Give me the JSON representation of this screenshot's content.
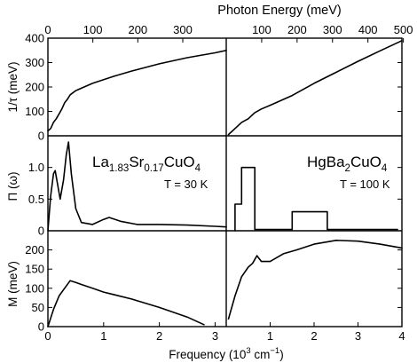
{
  "figure": {
    "top_axis_label": "Photon Energy (meV)",
    "bottom_axis_label": "Frequency (10³ cm⁻¹)",
    "bottom_axis_label_base": "Frequency (10",
    "bottom_axis_label_exp1": "3",
    "bottom_axis_label_mid": " cm",
    "bottom_axis_label_exp2": "−1",
    "bottom_axis_label_end": ")"
  },
  "panels": {
    "lsco_label_parts": [
      "La",
      "1.83",
      "Sr",
      "0.17",
      "CuO",
      "4"
    ],
    "lsco_label": "La1.83Sr0.17CuO4",
    "lsco_temp": "T = 30 K",
    "hbco_label_parts": [
      "HgBa",
      "2",
      "CuO",
      "4"
    ],
    "hbco_label": "HgBa2CuO4",
    "hbco_temp": "T = 100 K"
  },
  "chart_data": [
    {
      "type": "line",
      "panel": "LSCO scattering rate",
      "ylabel": "1/τ (meV)",
      "xlabel": "",
      "top_xlabel": "Photon Energy (meV)",
      "xlim": [
        0,
        3.2
      ],
      "ylim": [
        0,
        400
      ],
      "yticks": [
        0,
        100,
        200,
        300,
        400
      ],
      "top_ticks_meV": [
        0,
        100,
        200,
        300
      ],
      "grid": false,
      "x": [
        0,
        0.05,
        0.1,
        0.15,
        0.2,
        0.25,
        0.3,
        0.35,
        0.4,
        0.5,
        0.6,
        0.8,
        1.0,
        1.2,
        1.5,
        2.0,
        2.5,
        3.0,
        3.2
      ],
      "y": [
        20,
        30,
        55,
        70,
        90,
        110,
        135,
        150,
        168,
        185,
        195,
        215,
        230,
        245,
        265,
        295,
        320,
        340,
        350
      ]
    },
    {
      "type": "line",
      "panel": "HBCO scattering rate",
      "xlim": [
        0,
        4
      ],
      "ylim": [
        0,
        400
      ],
      "top_ticks_meV": [
        100,
        200,
        300,
        400,
        500
      ],
      "grid": false,
      "x": [
        0.05,
        0.2,
        0.35,
        0.5,
        0.65,
        0.8,
        1.0,
        1.5,
        2.0,
        2.5,
        3.0,
        3.5,
        4.0
      ],
      "y": [
        5,
        30,
        55,
        70,
        95,
        110,
        125,
        165,
        215,
        260,
        305,
        348,
        390
      ]
    },
    {
      "type": "line",
      "panel": "LSCO boson spectral function",
      "ylabel": "Π (ω)",
      "xlim": [
        0,
        3.2
      ],
      "ylim": [
        0,
        1.5
      ],
      "yticks": [
        0,
        0.5,
        1.0
      ],
      "ytick_labels": [
        "0",
        "0.5",
        "1.0"
      ],
      "grid": false,
      "x": [
        0,
        0.05,
        0.1,
        0.13,
        0.17,
        0.22,
        0.28,
        0.33,
        0.37,
        0.42,
        0.5,
        0.6,
        0.8,
        1.0,
        1.1,
        1.3,
        1.6,
        2.0,
        2.5,
        3.0,
        3.2
      ],
      "y": [
        0,
        0.55,
        0.9,
        0.95,
        0.75,
        0.5,
        0.8,
        1.2,
        1.4,
        0.9,
        0.35,
        0.13,
        0.1,
        0.18,
        0.21,
        0.15,
        0.1,
        0.1,
        0.09,
        0.07,
        0.06
      ]
    },
    {
      "type": "line",
      "panel": "HBCO boson spectral function (histogram)",
      "xlim": [
        0,
        4
      ],
      "ylim": [
        0,
        1.5
      ],
      "grid": false,
      "x": [
        0.2,
        0.2,
        0.35,
        0.35,
        0.65,
        0.65,
        1.5,
        1.5,
        2.3,
        2.3,
        3.9
      ],
      "y": [
        0,
        0.42,
        0.42,
        1.0,
        1.0,
        0.02,
        0.02,
        0.3,
        0.3,
        0.02,
        0.02
      ]
    },
    {
      "type": "line",
      "panel": "LSCO effective mass",
      "ylabel": "M (meV)",
      "xlim": [
        0,
        3.2
      ],
      "ylim": [
        0,
        250
      ],
      "yticks": [
        0,
        50,
        100,
        150,
        200
      ],
      "xticks": [
        0,
        1,
        2,
        3
      ],
      "grid": false,
      "x": [
        0,
        0.1,
        0.2,
        0.3,
        0.4,
        0.5,
        0.6,
        0.8,
        1.0,
        1.5,
        2.0,
        2.5,
        2.8
      ],
      "y": [
        0,
        45,
        80,
        100,
        120,
        115,
        110,
        100,
        90,
        72,
        50,
        25,
        5
      ]
    },
    {
      "type": "line",
      "panel": "HBCO effective mass",
      "xlim": [
        0,
        4
      ],
      "ylim": [
        0,
        250
      ],
      "xticks": [
        0,
        1,
        2,
        3,
        4
      ],
      "grid": false,
      "x": [
        0.05,
        0.2,
        0.35,
        0.5,
        0.6,
        0.7,
        0.8,
        1.0,
        1.3,
        1.6,
        2.0,
        2.5,
        3.0,
        3.5,
        4.0
      ],
      "y": [
        20,
        80,
        130,
        155,
        165,
        185,
        170,
        170,
        190,
        200,
        215,
        225,
        223,
        215,
        205
      ]
    }
  ]
}
